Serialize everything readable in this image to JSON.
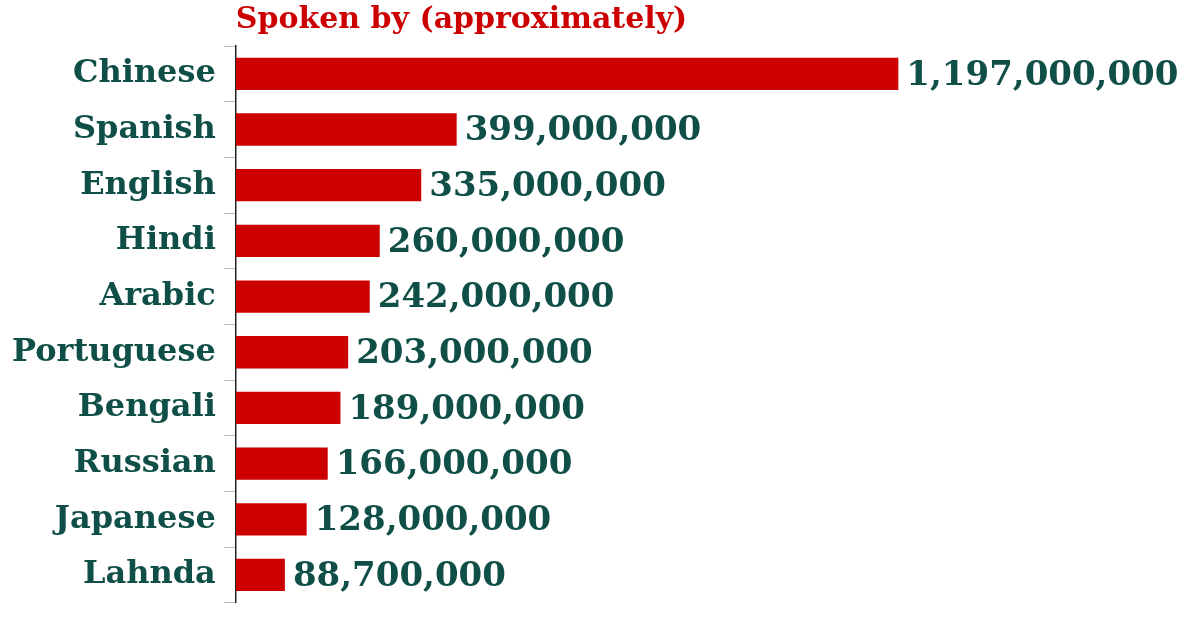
{
  "chart_data": {
    "type": "bar",
    "orientation": "horizontal",
    "title": "Spoken by (approximately)",
    "categories": [
      "Chinese",
      "Spanish",
      "English",
      "Hindi",
      "Arabic",
      "Portuguese",
      "Bengali",
      "Russian",
      "Japanese",
      "Lahnda"
    ],
    "values": [
      1197000000,
      399000000,
      335000000,
      260000000,
      242000000,
      203000000,
      189000000,
      166000000,
      128000000,
      88700000
    ],
    "value_labels": [
      "1,197,000,000",
      "399,000,000",
      "335,000,000",
      "260,000,000",
      "242,000,000",
      "203,000,000",
      "189,000,000",
      "166,000,000",
      "128,000,000",
      "88,700,000"
    ],
    "color": "#cc0000",
    "legend": false,
    "grid": false,
    "tick_labels": "y"
  }
}
